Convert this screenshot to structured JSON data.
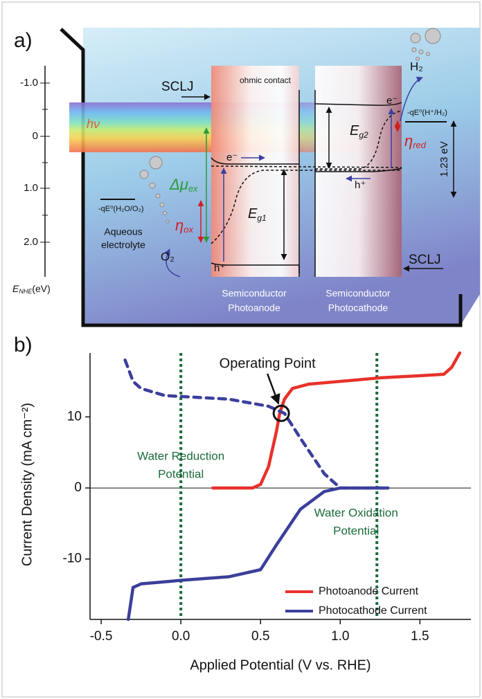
{
  "diagram": {
    "panel_label": "a)",
    "energy_axis": {
      "ticks": [
        "-1.0",
        "0",
        "1.0",
        "2.0"
      ],
      "label": "E",
      "label_sub": "NHE",
      "unit": "(eV)"
    },
    "sclj_top": "SCLJ",
    "sclj_bottom": "SCLJ",
    "ohmic_contact": "ohmic contact",
    "photon": "hν",
    "delta_mu": "Δμ",
    "delta_mu_sub": "ex",
    "eta_ox": "η",
    "eta_ox_sub": "ox",
    "eta_red": "η",
    "eta_red_sub": "red",
    "eg1": "E",
    "eg1_sub": "g1",
    "eg2": "E",
    "eg2_sub": "g2",
    "electron_anode": "e⁻",
    "hole_anode": "h⁺",
    "electron_cathode": "e⁻",
    "hole_cathode": "h⁺",
    "oxygen_potential": "-qE⁰(H₂O/O₂)",
    "electrolyte": [
      "Aqueous",
      "electrolyte"
    ],
    "oxygen": "O₂",
    "hydrogen": "H₂",
    "hydrogen_potential": "-qE⁰(H⁺/H₂)",
    "voltage": "1.23 eV",
    "photoanode": [
      "Semiconductor",
      "Photoanode"
    ],
    "photocathode": [
      "Semiconductor",
      "Photocathode"
    ]
  },
  "chart_data": {
    "type": "line",
    "panel_label": "b)",
    "xlabel": "Applied Potential (V vs. RHE)",
    "ylabel": "Current Density (mA cm⁻²)",
    "xlim": [
      -0.57,
      1.82
    ],
    "ylim": [
      -18.5,
      19
    ],
    "xticks": [
      -0.5,
      {
        "value": 0,
        "label": "0.0"
      },
      0.5,
      {
        "value": 1,
        "label": "1.0"
      },
      1.5
    ],
    "yticks": [
      -10,
      0,
      10
    ],
    "zero_line": true,
    "series": [
      {
        "name": "Photoanode Current",
        "color": "#e8312b",
        "x": [
          0.2,
          0.45,
          0.5,
          0.55,
          0.6,
          0.62,
          0.65,
          0.7,
          0.8,
          1.0,
          1.25,
          1.5,
          1.65,
          1.7,
          1.75
        ],
        "values": [
          0,
          0,
          0.5,
          3,
          8,
          10.5,
          12.5,
          14,
          14.6,
          15,
          15.5,
          15.8,
          16,
          17,
          19
        ]
      },
      {
        "name": "Photocathode Current",
        "color": "#3b3f9b",
        "x": [
          -0.33,
          -0.3,
          -0.25,
          -0.1,
          0,
          0.3,
          0.5,
          0.6,
          0.75,
          0.9,
          1.0,
          1.3
        ],
        "values": [
          -18.5,
          -14,
          -13.5,
          -13.2,
          -13,
          -12.5,
          -11.5,
          -8,
          -3,
          -0.5,
          0,
          0
        ]
      },
      {
        "color": "#3b3f9b",
        "dashed": true,
        "x": [
          -0.35,
          -0.3,
          -0.25,
          -0.1,
          0.3,
          0.55,
          0.65,
          0.75,
          0.9,
          1.0,
          1.3
        ],
        "values": [
          18,
          15,
          14,
          13,
          12.5,
          11.5,
          10.5,
          7,
          2,
          0,
          0
        ]
      }
    ],
    "vlines": [
      {
        "x": 0,
        "color": "#1d6b3c",
        "label": [
          "Water Reduction",
          "Potential"
        ]
      },
      {
        "x": 1.23,
        "color": "#1d6b3c",
        "label": [
          "Water Oxidation",
          "Potential"
        ]
      }
    ],
    "operating_point": {
      "label": "Operating Point",
      "x": 0.63,
      "y": 10.5
    }
  }
}
